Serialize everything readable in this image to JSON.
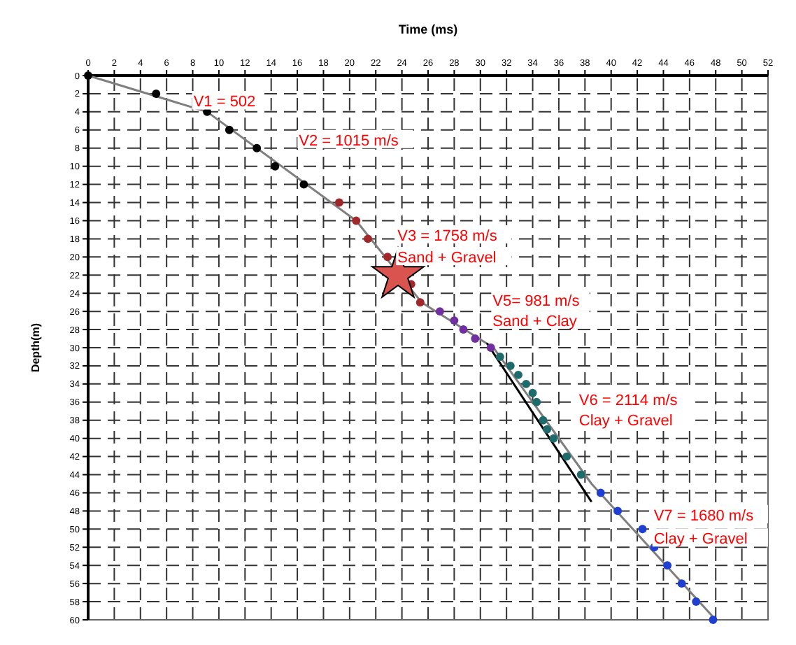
{
  "chart_data": {
    "type": "scatter",
    "xlabel": "Time (ms)",
    "ylabel": "Depth(m)",
    "xlim": [
      0,
      52
    ],
    "xticks": [
      0,
      2,
      4,
      6,
      8,
      10,
      12,
      14,
      16,
      18,
      20,
      22,
      24,
      26,
      28,
      30,
      32,
      34,
      36,
      38,
      40,
      42,
      44,
      46,
      48,
      50,
      52
    ],
    "ylim": [
      60,
      0
    ],
    "yticks": [
      0,
      2,
      4,
      6,
      8,
      10,
      12,
      14,
      16,
      18,
      20,
      22,
      24,
      26,
      28,
      30,
      32,
      34,
      36,
      38,
      40,
      42,
      44,
      46,
      48,
      50,
      52,
      54,
      56,
      58,
      60
    ],
    "grid": true,
    "series": [
      {
        "type": "line",
        "color": "#7f7f7f",
        "x": [
          0,
          9.1,
          20.5,
          25.5,
          31,
          38.5,
          48
        ],
        "values": [
          0,
          4,
          16,
          25,
          30,
          45,
          60
        ]
      },
      {
        "type": "line",
        "color": "#000000",
        "x": [
          30.5,
          38.5
        ],
        "values": [
          29.5,
          47
        ]
      },
      {
        "color": "#000000",
        "marker": "circle",
        "x": [
          0,
          5.2,
          9.1,
          10.8,
          12.9,
          14.3,
          16.5
        ],
        "values": [
          0,
          2,
          4,
          6,
          8,
          10,
          12
        ]
      },
      {
        "color": "#a0282a",
        "marker": "circle",
        "x": [
          19.2,
          20.5,
          21.4,
          22.9,
          24.7,
          25.4
        ],
        "values": [
          14,
          16,
          18,
          20,
          23,
          25
        ]
      },
      {
        "color": "#7030a0",
        "marker": "circle",
        "x": [
          26.9,
          28,
          28.7,
          29.6,
          30.8
        ],
        "values": [
          26,
          27,
          28,
          29,
          30
        ]
      },
      {
        "color": "#1f6b6b",
        "marker": "circle",
        "x": [
          31.5,
          32.3,
          32.9,
          33.5,
          34,
          34.3,
          34.8,
          35.1,
          35.6,
          36.6,
          37.7
        ],
        "values": [
          31,
          32,
          33,
          34,
          35,
          36,
          38,
          39,
          40,
          42,
          44
        ]
      },
      {
        "color": "#1f3fd0",
        "marker": "circle",
        "x": [
          39.2,
          40.5,
          42.4,
          43.3,
          44.3,
          45.4,
          46.5,
          47.8
        ],
        "values": [
          46,
          48,
          50,
          52,
          54,
          56,
          58,
          60
        ]
      },
      {
        "color": "#d9534f",
        "marker": "star",
        "x": [
          23.7
        ],
        "values": [
          22
        ]
      }
    ],
    "annotations": [
      "V1 = 502",
      "V2 = 1015 m/s",
      "V3 = 1758 m/s",
      "Sand + Gravel",
      "V5= 981 m/s",
      "Sand + Clay",
      "V6 = 2114 m/s",
      "Clay + Gravel",
      "V7 = 1680 m/s",
      "Clay + Gravel"
    ]
  }
}
